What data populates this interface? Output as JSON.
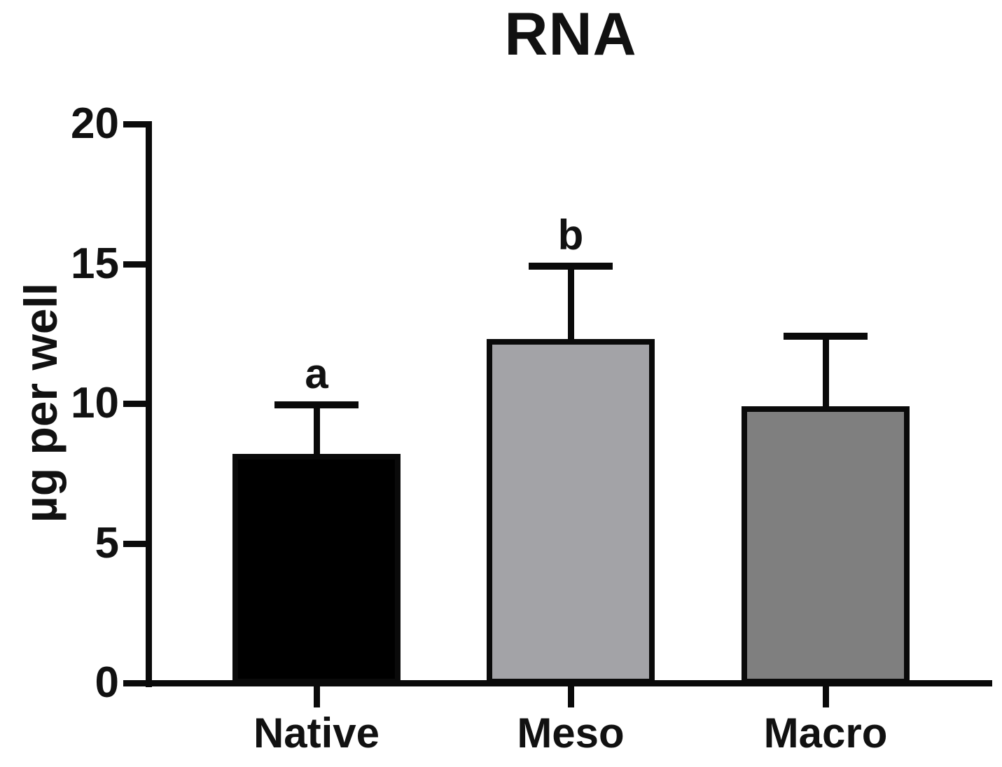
{
  "chart_data": {
    "type": "bar",
    "title": "RNA",
    "ylabel": "µg per well",
    "xlabel": "",
    "categories": [
      "Native",
      "Meso",
      "Macro"
    ],
    "values": [
      8.2,
      12.3,
      9.9
    ],
    "error_upper": [
      1.75,
      2.6,
      2.5
    ],
    "error_bar_tops": [
      9.95,
      14.9,
      12.4
    ],
    "significance_labels": [
      "a",
      "b",
      ""
    ],
    "bar_colors": [
      "#000000",
      "#a3a3a7",
      "#7f7f7f"
    ],
    "bar_border_color": "#0a0a0a",
    "axis_color": "#0a0a0a",
    "text_color": "#111111",
    "ylim": [
      0,
      20
    ],
    "yticks": [
      0,
      5,
      10,
      15,
      20
    ],
    "grid": false,
    "legend": "none"
  }
}
